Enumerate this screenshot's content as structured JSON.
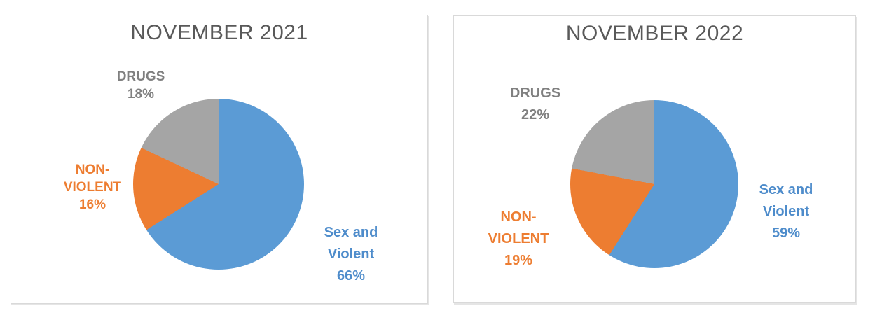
{
  "page": {
    "background_color": "#ffffff",
    "panel_border_color": "#d9d9d9",
    "title_color": "#595959"
  },
  "chart_data": [
    {
      "type": "pie",
      "title": "NOVEMBER 2021",
      "start_angle_deg": 0,
      "direction": "clockwise",
      "legend": "none",
      "categories": [
        "Sex and Violent",
        "NON-VIOLENT",
        "DRUGS"
      ],
      "values": [
        66,
        16,
        18
      ],
      "slices": [
        {
          "name": "Sex and Violent",
          "value_pct": 66,
          "color": "#5B9BD5",
          "label_color": "#4E8CCB",
          "label_lines": [
            "Sex and",
            "Violent",
            "66%"
          ]
        },
        {
          "name": "NON-VIOLENT",
          "value_pct": 16,
          "color": "#ED7D31",
          "label_color": "#ED7D31",
          "label_lines": [
            "NON-",
            "VIOLENT",
            "16%"
          ]
        },
        {
          "name": "DRUGS",
          "value_pct": 18,
          "color": "#A5A5A5",
          "label_color": "#808080",
          "label_lines": [
            "DRUGS",
            "18%"
          ]
        }
      ]
    },
    {
      "type": "pie",
      "title": "NOVEMBER 2022",
      "start_angle_deg": 0,
      "direction": "clockwise",
      "legend": "none",
      "categories": [
        "Sex and Violent",
        "NON-VIOLENT",
        "DRUGS"
      ],
      "values": [
        59,
        19,
        22
      ],
      "slices": [
        {
          "name": "Sex and Violent",
          "value_pct": 59,
          "color": "#5B9BD5",
          "label_color": "#4E8CCB",
          "label_lines": [
            "Sex and",
            "Violent",
            "59%"
          ]
        },
        {
          "name": "NON-VIOLENT",
          "value_pct": 19,
          "color": "#ED7D31",
          "label_color": "#ED7D31",
          "label_lines": [
            "NON-",
            "VIOLENT",
            "19%"
          ]
        },
        {
          "name": "DRUGS",
          "value_pct": 22,
          "color": "#A5A5A5",
          "label_color": "#808080",
          "label_lines": [
            "DRUGS",
            "22%"
          ]
        }
      ]
    }
  ]
}
